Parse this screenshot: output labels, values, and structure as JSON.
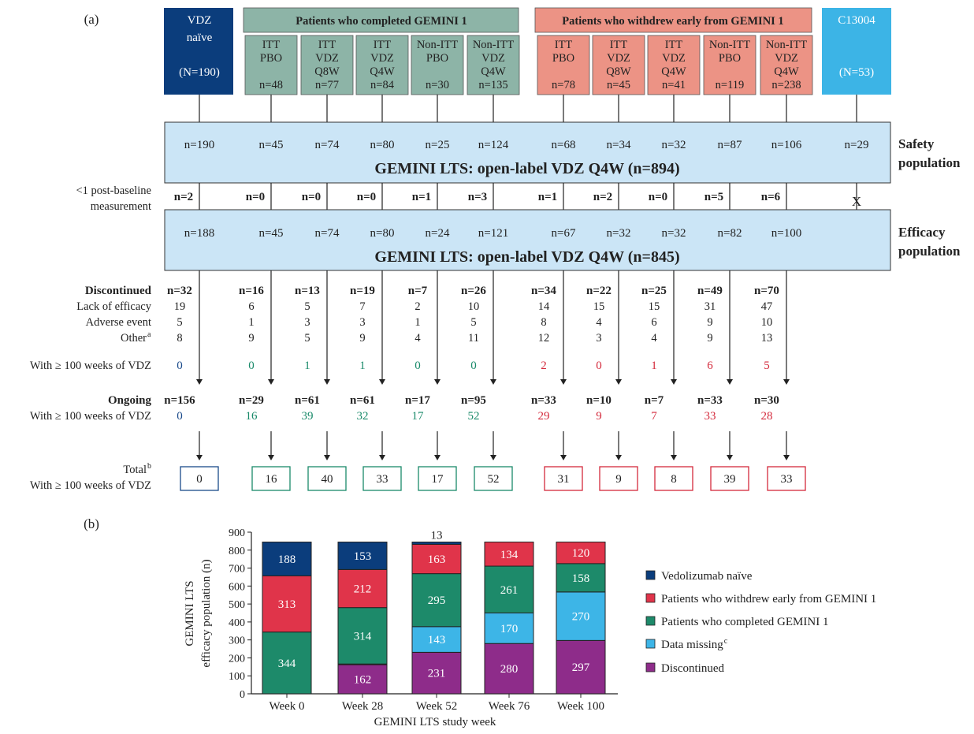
{
  "panel_a_label": "(a)",
  "panel_b_label": "(b)",
  "colors": {
    "navy": "#0b3d7c",
    "green_fill": "#8db4a7",
    "red_fill": "#ec9385",
    "cyan_fill": "#3cb4e6",
    "lightblue_fill": "#cbe5f6",
    "green_text": "#1a8a6a",
    "red_text": "#d42a3c",
    "navy_text": "#1a4a8a",
    "bar_navy": "#0b3d7c",
    "bar_red": "#e0344a",
    "bar_green": "#1d8a6a",
    "bar_cyan": "#3db5e7",
    "bar_purple": "#8e2c8a"
  },
  "headers": {
    "vdz_naive": [
      "VDZ",
      "naïve",
      "",
      "(N=190)"
    ],
    "completed": "Patients who completed GEMINI 1",
    "withdrew": "Patients who withdrew early from GEMINI 1",
    "c13004": [
      "C13004",
      "",
      "(N=53)"
    ]
  },
  "cohorts": [
    {
      "lines": [
        "ITT",
        "PBO",
        "",
        "n=48"
      ],
      "group": "completed"
    },
    {
      "lines": [
        "ITT",
        "VDZ",
        "Q8W",
        "n=77"
      ],
      "group": "completed"
    },
    {
      "lines": [
        "ITT",
        "VDZ",
        "Q4W",
        "n=84"
      ],
      "group": "completed"
    },
    {
      "lines": [
        "Non-ITT",
        "PBO",
        "",
        "n=30"
      ],
      "group": "completed"
    },
    {
      "lines": [
        "Non-ITT",
        "VDZ",
        "Q4W",
        "n=135"
      ],
      "group": "completed"
    },
    {
      "lines": [
        "ITT",
        "PBO",
        "",
        "n=78"
      ],
      "group": "withdrew"
    },
    {
      "lines": [
        "ITT",
        "VDZ",
        "Q8W",
        "n=45"
      ],
      "group": "withdrew"
    },
    {
      "lines": [
        "ITT",
        "VDZ",
        "Q4W",
        "n=41"
      ],
      "group": "withdrew"
    },
    {
      "lines": [
        "Non-ITT",
        "PBO",
        "",
        "n=119"
      ],
      "group": "withdrew"
    },
    {
      "lines": [
        "Non-ITT",
        "VDZ",
        "Q4W",
        "n=238"
      ],
      "group": "withdrew"
    }
  ],
  "safety": {
    "counts": [
      "n=190",
      "n=45",
      "n=74",
      "n=80",
      "n=25",
      "n=124",
      "n=68",
      "n=34",
      "n=32",
      "n=87",
      "n=106",
      "n=29"
    ],
    "title": "GEMINI LTS: open-label VDZ Q4W (n=894)",
    "side_label": [
      "Safety",
      "population"
    ]
  },
  "post_baseline": {
    "label": [
      "<1 post-baseline",
      "measurement"
    ],
    "counts": [
      "n=2",
      "n=0",
      "n=0",
      "n=0",
      "n=1",
      "n=3",
      "n=1",
      "n=2",
      "n=0",
      "n=5",
      "n=6"
    ],
    "c13004_mark": "X"
  },
  "efficacy": {
    "counts": [
      "n=188",
      "n=45",
      "n=74",
      "n=80",
      "n=24",
      "n=121",
      "n=67",
      "n=32",
      "n=32",
      "n=82",
      "n=100"
    ],
    "title": "GEMINI LTS: open-label VDZ Q4W (n=845)",
    "side_label": [
      "Efficacy",
      "population"
    ]
  },
  "discontinued": {
    "labels": [
      "Discontinued",
      "Lack of efficacy",
      "Adverse event",
      "Other"
    ],
    "other_sup": "a",
    "totals": [
      "n=32",
      "n=16",
      "n=13",
      "n=19",
      "n=7",
      "n=26",
      "n=34",
      "n=22",
      "n=25",
      "n=49",
      "n=70"
    ],
    "lack": [
      "19",
      "6",
      "5",
      "7",
      "2",
      "10",
      "14",
      "15",
      "15",
      "31",
      "47"
    ],
    "adverse": [
      "5",
      "1",
      "3",
      "3",
      "1",
      "5",
      "8",
      "4",
      "6",
      "9",
      "10"
    ],
    "other": [
      "8",
      "9",
      "5",
      "9",
      "4",
      "11",
      "12",
      "3",
      "4",
      "9",
      "13"
    ]
  },
  "with100_disc": {
    "label": "With ≥ 100 weeks of VDZ",
    "values": [
      "0",
      "0",
      "1",
      "1",
      "0",
      "0",
      "2",
      "0",
      "1",
      "6",
      "5"
    ]
  },
  "ongoing": {
    "labels": [
      "Ongoing",
      "With ≥ 100 weeks of VDZ"
    ],
    "totals": [
      "n=156",
      "n=29",
      "n=61",
      "n=61",
      "n=17",
      "n=95",
      "n=33",
      "n=10",
      "n=7",
      "n=33",
      "n=30"
    ],
    "with100": [
      "0",
      "16",
      "39",
      "32",
      "17",
      "52",
      "29",
      "9",
      "7",
      "33",
      "28"
    ]
  },
  "total": {
    "labels": [
      "Total",
      "With ≥ 100 weeks of VDZ"
    ],
    "sup": "b",
    "values": [
      "0",
      "16",
      "40",
      "33",
      "17",
      "52",
      "31",
      "9",
      "8",
      "39",
      "33"
    ]
  },
  "chart_data": {
    "type": "bar",
    "stacked": true,
    "categories": [
      "Week 0",
      "Week 28",
      "Week 52",
      "Week 76",
      "Week 100"
    ],
    "series": [
      {
        "name": "Discontinued",
        "values": [
          0,
          162,
          231,
          280,
          297
        ],
        "color": "#8e2c8a"
      },
      {
        "name": "Data missing",
        "values": [
          0,
          4,
          143,
          170,
          270
        ],
        "color": "#3db5e7"
      },
      {
        "name": "Patients who completed GEMINI 1",
        "values": [
          344,
          314,
          295,
          261,
          158
        ],
        "color": "#1d8a6a"
      },
      {
        "name": "Patients who withdrew early from GEMINI 1",
        "values": [
          313,
          212,
          163,
          134,
          120
        ],
        "color": "#e0344a"
      },
      {
        "name": "Vedolizumab naïve",
        "values": [
          188,
          153,
          13,
          0,
          0
        ],
        "color": "#0b3d7c"
      }
    ],
    "legend": [
      {
        "text": "Vedolizumab naïve",
        "sup": "",
        "color": "#0b3d7c"
      },
      {
        "text": "Patients who withdrew early from GEMINI 1",
        "sup": "",
        "color": "#e0344a"
      },
      {
        "text": "Patients who completed GEMINI 1",
        "sup": "",
        "color": "#1d8a6a"
      },
      {
        "text": "Data missing",
        "sup": "c",
        "color": "#3db5e7"
      },
      {
        "text": "Discontinued",
        "sup": "",
        "color": "#8e2c8a"
      }
    ],
    "yticks": [
      "0",
      "100",
      "200",
      "300",
      "400",
      "500",
      "600",
      "700",
      "800",
      "900"
    ],
    "ylim": [
      0,
      900
    ],
    "ylabel": [
      "GEMINI LTS",
      "efficacy population (n)"
    ],
    "xlabel": "GEMINI LTS study week"
  }
}
